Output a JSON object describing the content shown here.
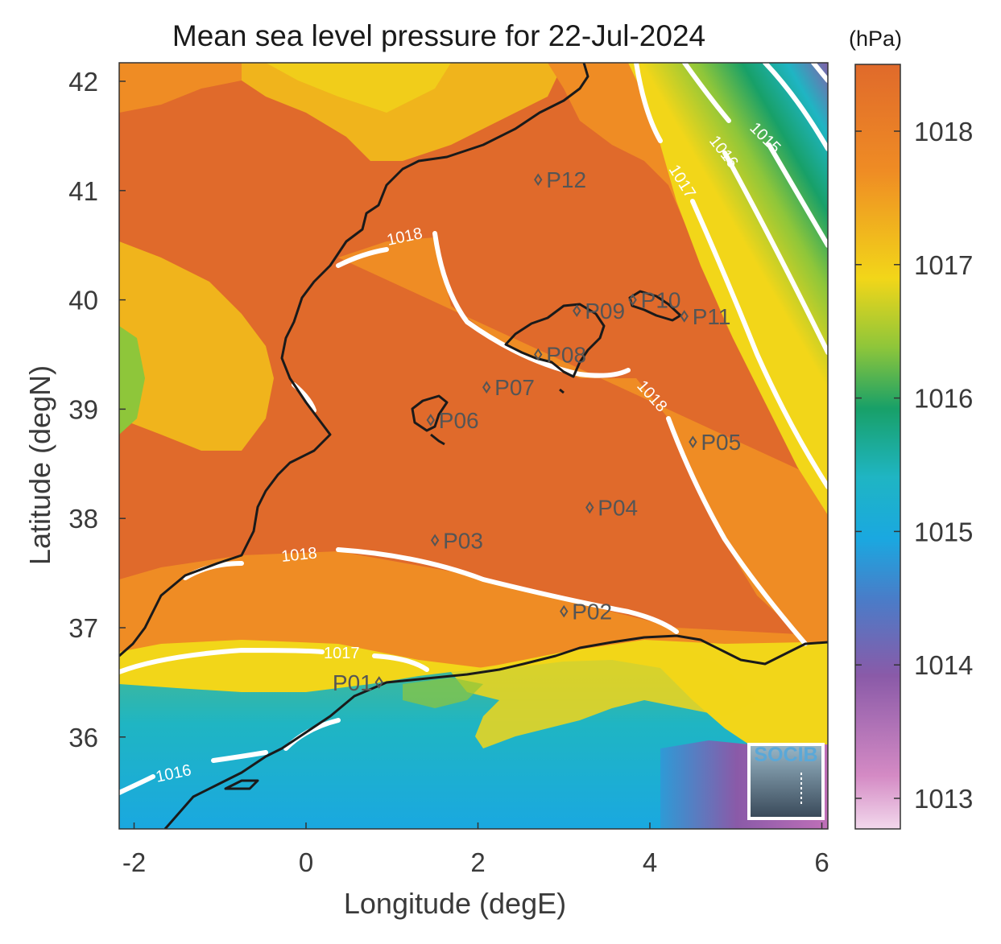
{
  "title": "Mean sea level pressure for 22-Jul-2024",
  "units": "(hPa)",
  "xlabel": "Longitude (degE)",
  "ylabel": "Latitude (degN)",
  "logo_text": "SOCIB",
  "x_ticks": [
    "-2",
    "0",
    "2",
    "4",
    "6"
  ],
  "y_ticks": [
    "42",
    "41",
    "40",
    "39",
    "38",
    "37",
    "36"
  ],
  "colorbar_ticks": [
    "1018",
    "1017",
    "1016",
    "1015",
    "1014",
    "1013"
  ],
  "contour_labels": [
    "1015",
    "1016",
    "1017",
    "1018",
    "1018",
    "1018",
    "1017",
    "1016"
  ],
  "points": [
    {
      "id": "P01",
      "lon": 0.85,
      "lat": 36.5
    },
    {
      "id": "P02",
      "lon": 3.0,
      "lat": 37.15
    },
    {
      "id": "P03",
      "lon": 1.5,
      "lat": 37.8
    },
    {
      "id": "P04",
      "lon": 3.3,
      "lat": 38.1
    },
    {
      "id": "P05",
      "lon": 4.5,
      "lat": 38.7
    },
    {
      "id": "P06",
      "lon": 1.45,
      "lat": 38.9
    },
    {
      "id": "P07",
      "lon": 2.1,
      "lat": 39.2
    },
    {
      "id": "P08",
      "lon": 2.7,
      "lat": 39.5
    },
    {
      "id": "P09",
      "lon": 3.15,
      "lat": 39.9
    },
    {
      "id": "P10",
      "lon": 3.8,
      "lat": 40.0
    },
    {
      "id": "P11",
      "lon": 4.4,
      "lat": 39.85
    },
    {
      "id": "P12",
      "lon": 2.7,
      "lat": 41.1
    }
  ],
  "colors": {
    "high": "#e06a2b",
    "orange": "#ef8c24",
    "yellow": "#f2d619",
    "green": "#18a068",
    "cyan": "#1fb5c3",
    "blue": "#1aa8e0",
    "purple": "#8a5aa8",
    "low": "#e8c8e0"
  }
}
